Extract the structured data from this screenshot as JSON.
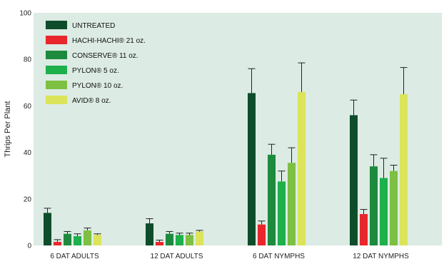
{
  "chart_data": {
    "type": "bar",
    "title": "",
    "xlabel": "",
    "ylabel": "Thrips Per Plant",
    "ylim": [
      0,
      100
    ],
    "yticks": [
      0,
      20,
      40,
      60,
      80,
      100
    ],
    "grid": false,
    "legend_position": "top-left",
    "background_color": "#dcebe3",
    "categories": [
      "6 DAT ADULTS",
      "12 DAT ADULTS",
      "6 DAT NYMPHS",
      "12 DAT NYMPHS"
    ],
    "series": [
      {
        "name": "UNTREATED",
        "color": "#0e4d2b",
        "values": [
          14,
          9.5,
          65.5,
          56
        ],
        "errors": [
          2,
          2,
          10.5,
          6.5
        ]
      },
      {
        "name": "HACHI-HACHI® 21 oz.",
        "color": "#e8262b",
        "values": [
          1.5,
          1.5,
          9,
          13.5
        ],
        "errors": [
          1,
          0.8,
          1.5,
          2
        ]
      },
      {
        "name": "CONSERVE® 11 oz.",
        "color": "#1d8a3e",
        "values": [
          5,
          5,
          39,
          34
        ],
        "errors": [
          1,
          1,
          4.5,
          5
        ]
      },
      {
        "name": "PYLON® 5 oz.",
        "color": "#1db04b",
        "values": [
          4,
          4.5,
          27.5,
          29
        ],
        "errors": [
          1,
          0.8,
          4.5,
          8.5
        ]
      },
      {
        "name": "PYLON® 10 oz.",
        "color": "#7dc043",
        "values": [
          6.5,
          4.5,
          35.5,
          32
        ],
        "errors": [
          1,
          0.8,
          6.5,
          2.5
        ]
      },
      {
        "name": "AVID® 8 oz.",
        "color": "#dbe45a",
        "values": [
          4.5,
          6,
          66,
          65
        ],
        "errors": [
          0.5,
          0.5,
          12.5,
          11.5
        ]
      }
    ]
  }
}
